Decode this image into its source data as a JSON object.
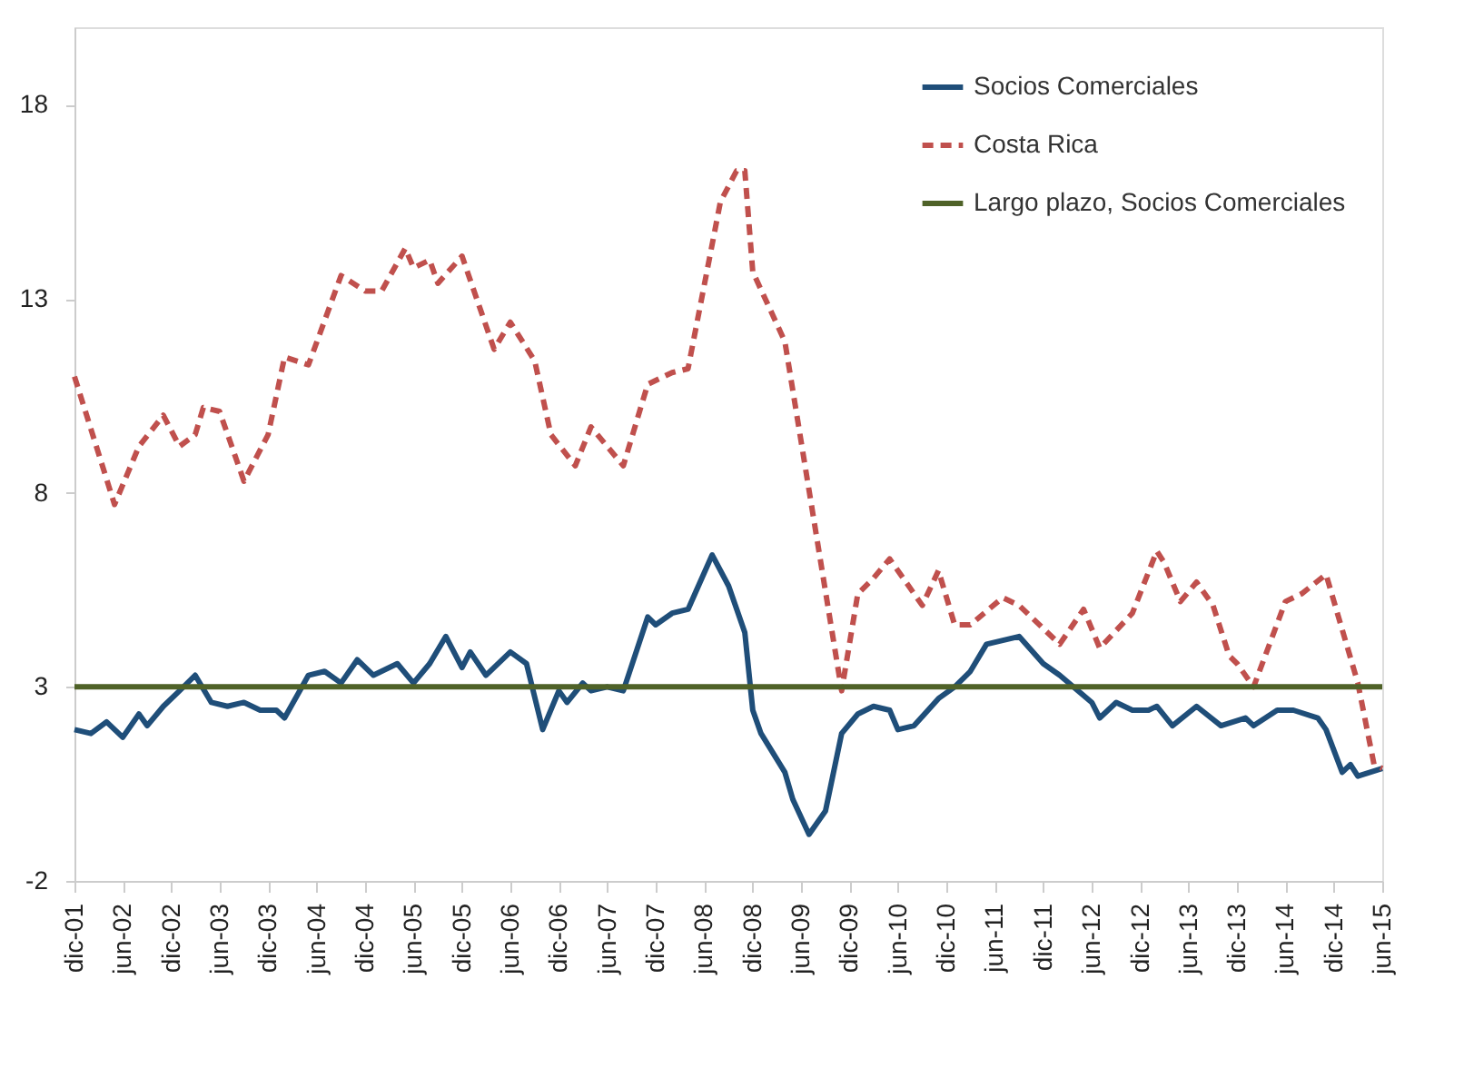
{
  "chart_data": {
    "type": "line",
    "ylim": [
      -2,
      20
    ],
    "yticks": [
      -2,
      3,
      8,
      13,
      18
    ],
    "xlim": [
      "2001-12",
      "2015-06"
    ],
    "xticks": [
      {
        "value": "2001-12",
        "label": "dic-01"
      },
      {
        "value": "2002-06",
        "label": "jun-02"
      },
      {
        "value": "2002-12",
        "label": "dic-02"
      },
      {
        "value": "2003-06",
        "label": "jun-03"
      },
      {
        "value": "2003-12",
        "label": "dic-03"
      },
      {
        "value": "2004-06",
        "label": "jun-04"
      },
      {
        "value": "2004-12",
        "label": "dic-04"
      },
      {
        "value": "2005-06",
        "label": "jun-05"
      },
      {
        "value": "2005-12",
        "label": "dic-05"
      },
      {
        "value": "2006-06",
        "label": "jun-06"
      },
      {
        "value": "2006-12",
        "label": "dic-06"
      },
      {
        "value": "2007-06",
        "label": "jun-07"
      },
      {
        "value": "2007-12",
        "label": "dic-07"
      },
      {
        "value": "2008-06",
        "label": "jun-08"
      },
      {
        "value": "2008-12",
        "label": "dic-08"
      },
      {
        "value": "2009-06",
        "label": "jun-09"
      },
      {
        "value": "2009-12",
        "label": "dic-09"
      },
      {
        "value": "2010-06",
        "label": "jun-10"
      },
      {
        "value": "2010-12",
        "label": "dic-10"
      },
      {
        "value": "2011-06",
        "label": "jun-11"
      },
      {
        "value": "2011-12",
        "label": "dic-11"
      },
      {
        "value": "2012-06",
        "label": "jun-12"
      },
      {
        "value": "2012-12",
        "label": "dic-12"
      },
      {
        "value": "2013-06",
        "label": "jun-13"
      },
      {
        "value": "2013-12",
        "label": "dic-13"
      },
      {
        "value": "2014-06",
        "label": "jun-14"
      },
      {
        "value": "2014-12",
        "label": "dic-14"
      },
      {
        "value": "2015-06",
        "label": "jun-15"
      }
    ],
    "grid": false,
    "legend": "top right",
    "marker": "none",
    "series": [
      {
        "name": "Socios Comerciales",
        "color": "#1f4e79",
        "line_style": "solid",
        "x": [
          "2001-12",
          "2002-02",
          "2002-04",
          "2002-06",
          "2002-08",
          "2002-09",
          "2002-11",
          "2003-01",
          "2003-03",
          "2003-05",
          "2003-07",
          "2003-09",
          "2003-11",
          "2004-01",
          "2004-02",
          "2004-05",
          "2004-07",
          "2004-09",
          "2004-11",
          "2005-01",
          "2005-04",
          "2005-06",
          "2005-08",
          "2005-10",
          "2005-12",
          "2006-01",
          "2006-03",
          "2006-06",
          "2006-08",
          "2006-10",
          "2006-12",
          "2007-01",
          "2007-03",
          "2007-04",
          "2007-06",
          "2007-08",
          "2007-11",
          "2007-12",
          "2008-02",
          "2008-04",
          "2008-07",
          "2008-09",
          "2008-11",
          "2008-12",
          "2009-01",
          "2009-04",
          "2009-05",
          "2009-07",
          "2009-09",
          "2009-11",
          "2010-01",
          "2010-03",
          "2010-05",
          "2010-06",
          "2010-08",
          "2010-11",
          "2011-01",
          "2011-03",
          "2011-05",
          "2011-09",
          "2011-12",
          "2012-02",
          "2012-06",
          "2012-07",
          "2012-09",
          "2012-11",
          "2013-01",
          "2013-02",
          "2013-04",
          "2013-07",
          "2013-10",
          "2014-01",
          "2014-02",
          "2014-05",
          "2014-07",
          "2014-10",
          "2014-11",
          "2015-01",
          "2015-02",
          "2015-03",
          "2015-06"
        ],
        "values": [
          1.9,
          1.8,
          2.1,
          1.7,
          2.3,
          2.0,
          2.5,
          2.9,
          3.3,
          2.6,
          2.5,
          2.6,
          2.4,
          2.4,
          2.2,
          3.3,
          3.4,
          3.1,
          3.7,
          3.3,
          3.6,
          3.1,
          3.6,
          4.3,
          3.5,
          3.9,
          3.3,
          3.9,
          3.6,
          1.9,
          2.9,
          2.6,
          3.1,
          2.9,
          3.0,
          2.9,
          4.8,
          4.6,
          4.9,
          5.0,
          6.4,
          5.6,
          4.4,
          2.4,
          1.8,
          0.8,
          0.1,
          -0.8,
          -0.2,
          1.8,
          2.3,
          2.5,
          2.4,
          1.9,
          2.0,
          2.7,
          3.0,
          3.4,
          4.1,
          4.3,
          3.6,
          3.3,
          2.6,
          2.2,
          2.6,
          2.4,
          2.4,
          2.5,
          2.0,
          2.5,
          2.0,
          2.2,
          2.0,
          2.4,
          2.4,
          2.2,
          1.9,
          0.8,
          1.0,
          0.7,
          0.9
        ]
      },
      {
        "name": "Costa Rica",
        "color": "#c0504d",
        "line_style": "dashed",
        "x": [
          "2001-12",
          "2002-05",
          "2002-08",
          "2002-11",
          "2003-01",
          "2003-03",
          "2003-04",
          "2003-06",
          "2003-09",
          "2003-12",
          "2004-02",
          "2004-05",
          "2004-09",
          "2004-12",
          "2005-02",
          "2005-05",
          "2005-06",
          "2005-08",
          "2005-09",
          "2005-12",
          "2006-04",
          "2006-06",
          "2006-09",
          "2006-11",
          "2007-02",
          "2007-04",
          "2007-08",
          "2007-11",
          "2008-02",
          "2008-04",
          "2008-08",
          "2008-10",
          "2008-11",
          "2008-12",
          "2009-04",
          "2009-11",
          "2010-01",
          "2010-03",
          "2010-05",
          "2010-09",
          "2010-11",
          "2011-01",
          "2011-03",
          "2011-07",
          "2011-09",
          "2012-02",
          "2012-05",
          "2012-07",
          "2012-11",
          "2013-02",
          "2013-03",
          "2013-05",
          "2013-07",
          "2013-09",
          "2013-11",
          "2013-12",
          "2014-02",
          "2014-06",
          "2014-08",
          "2014-11",
          "2015-03",
          "2015-05",
          "2015-06"
        ],
        "values": [
          11.0,
          7.7,
          9.2,
          10.0,
          9.2,
          9.5,
          10.2,
          10.1,
          8.3,
          9.5,
          11.5,
          11.3,
          13.6,
          13.2,
          13.2,
          14.3,
          13.8,
          14.0,
          13.4,
          14.1,
          11.7,
          12.4,
          11.4,
          9.5,
          8.7,
          9.7,
          8.7,
          10.8,
          11.1,
          11.2,
          15.5,
          16.3,
          16.3,
          13.7,
          11.9,
          2.9,
          5.4,
          5.8,
          6.3,
          5.1,
          6.0,
          4.6,
          4.6,
          5.3,
          5.1,
          4.1,
          5.0,
          4.0,
          4.9,
          6.5,
          6.2,
          5.2,
          5.7,
          5.1,
          3.8,
          3.6,
          3.0,
          5.2,
          5.4,
          5.9,
          3.1,
          1.0,
          0.9
        ]
      },
      {
        "name": "Largo plazo, Socios Comerciales",
        "color": "#4f6228",
        "line_style": "solid",
        "x": [
          "2001-12",
          "2015-06"
        ],
        "values": [
          3.0,
          3.0
        ]
      }
    ]
  }
}
